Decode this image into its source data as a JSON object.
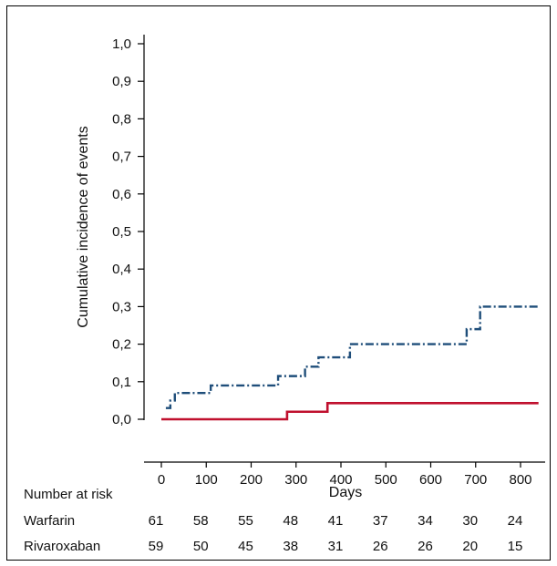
{
  "chart_data": {
    "type": "line",
    "step": true,
    "ylabel": "Cumulative incidence of events",
    "xlabel": "Days",
    "xlim": [
      0,
      840
    ],
    "ylim": [
      0,
      1.0
    ],
    "x_ticks": [
      "0",
      "100",
      "200",
      "300",
      "400",
      "500",
      "600",
      "700",
      "800"
    ],
    "x_tick_values": [
      0,
      100,
      200,
      300,
      400,
      500,
      600,
      700,
      800
    ],
    "y_ticks": [
      "0,0",
      "0,1",
      "0,2",
      "0,3",
      "0,4",
      "0,5",
      "0,6",
      "0,7",
      "0,8",
      "0,9",
      "1,0"
    ],
    "y_tick_values": [
      0,
      0.1,
      0.2,
      0.3,
      0.4,
      0.5,
      0.6,
      0.7,
      0.8,
      0.9,
      1.0
    ],
    "grid": false,
    "legend": "none",
    "series": [
      {
        "color": "#1f4e7a",
        "style": "dash-dot",
        "x": [
          10,
          20,
          30,
          110,
          260,
          320,
          350,
          420,
          680,
          710,
          840
        ],
        "y": [
          0.03,
          0.05,
          0.07,
          0.09,
          0.115,
          0.14,
          0.165,
          0.2,
          0.24,
          0.3,
          0.3
        ]
      },
      {
        "color": "#c0102e",
        "style": "solid",
        "x": [
          0,
          280,
          370,
          840
        ],
        "y": [
          0,
          0.02,
          0.043,
          0.043
        ]
      }
    ],
    "risk_table": {
      "header": "Number at risk",
      "rows": [
        {
          "label": "Warfarin",
          "values": [
            "61",
            "58",
            "55",
            "48",
            "41",
            "37",
            "34",
            "30",
            "24"
          ]
        },
        {
          "label": "Rivaroxaban",
          "values": [
            "59",
            "50",
            "45",
            "38",
            "31",
            "26",
            "26",
            "20",
            "15"
          ]
        }
      ]
    }
  }
}
